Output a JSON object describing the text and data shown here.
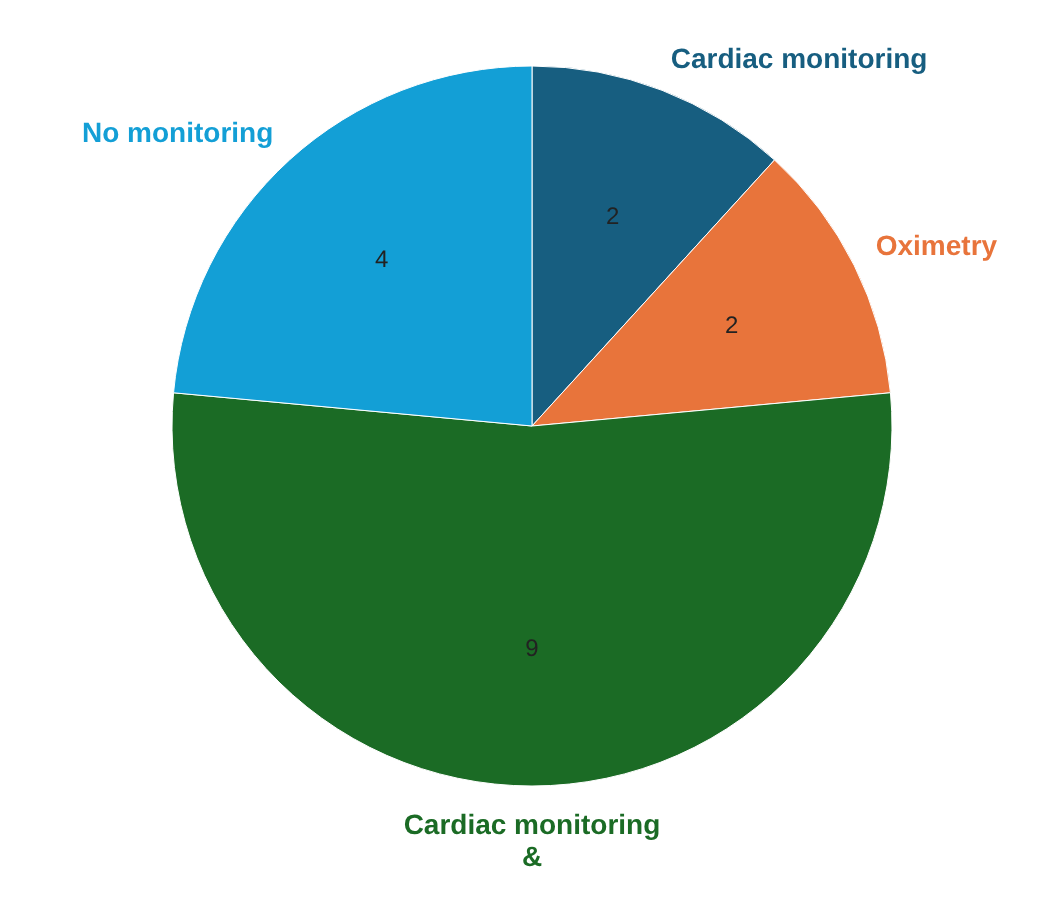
{
  "chart_data": {
    "type": "pie",
    "categories": [
      "Cardiac monitoring",
      "Oximetry",
      "Cardiac monitoring &",
      "No monitoring"
    ],
    "values": [
      2,
      2,
      9,
      4
    ],
    "colors": [
      "#175e80",
      "#e8743b",
      "#1b6b25",
      "#139fd6"
    ],
    "data_labels": true
  }
}
